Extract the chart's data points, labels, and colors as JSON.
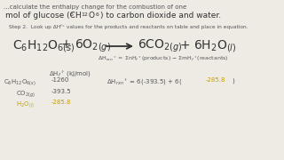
{
  "bg_color": "#eeebe5",
  "text_color": "#555555",
  "dark_color": "#333333",
  "highlight_color": "#c8a000",
  "top_line1": "...calculate the enthalpy change for the combustion of one",
  "top_line2_pre": "mol of glucose (C",
  "top_line2_post": ") to carbon dioxide and water.",
  "step_text": "Step 2.  Look up ΔHᶠ° values for the products and reactants on table and place in equation.",
  "table_header": "ΔHᶠ° (kJ/mol)",
  "row1_label": "C₆H₁₂O₆(s)",
  "row1_value": "-1260",
  "row2_label": "CO₂(g)",
  "row2_value": "-393.5",
  "row3_label": "H₂O(l)",
  "row3_value": "-285.8",
  "calc_prefix": "ΔHᴿₑₙ° = 6(-393.5) + 6(",
  "calc_highlight": "-285.8",
  "calc_suffix": ")"
}
